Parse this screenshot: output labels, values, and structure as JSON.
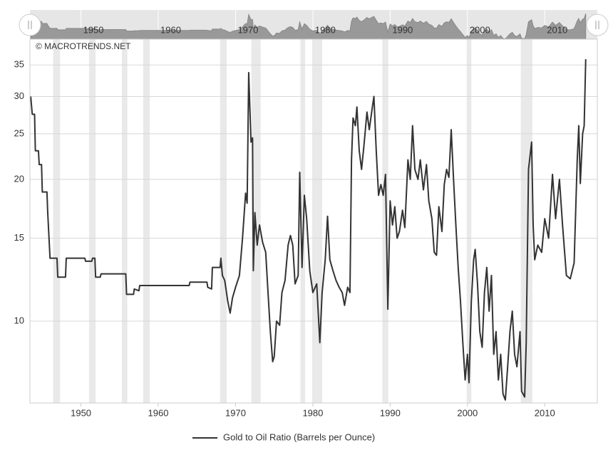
{
  "chart_data": {
    "type": "line",
    "credit": "© MACROTRENDS.NET",
    "log_scale": true,
    "grid": true,
    "xlim": [
      1943.4,
      2016.8
    ],
    "xticks": [
      1950,
      1960,
      1970,
      1980,
      1990,
      2000,
      2010
    ],
    "ylim": [
      6.7,
      39.7
    ],
    "yticks": [
      10,
      15,
      20,
      25,
      30,
      35
    ],
    "shaded_periods": [
      [
        1946.4,
        1947.3
      ],
      [
        1951.05,
        1951.9
      ],
      [
        1955.3,
        1956.0
      ],
      [
        1958.05,
        1958.9
      ],
      [
        1968.0,
        1968.85
      ],
      [
        1972.05,
        1973.25
      ],
      [
        1978.4,
        1979.0
      ],
      [
        1979.9,
        1981.2
      ],
      [
        1989.0,
        1989.75
      ],
      [
        1999.9,
        2000.5
      ],
      [
        2006.9,
        2008.4
      ]
    ],
    "series": [
      {
        "name": "Gold to Oil Ratio (Barrels per Ounce)",
        "color": "#333333",
        "x": [
          1943.5,
          1943.7,
          1944.0,
          1944.1,
          1944.5,
          1944.6,
          1944.9,
          1945.0,
          1945.6,
          1945.7,
          1946.0,
          1946.9,
          1947.0,
          1948.0,
          1948.1,
          1950.5,
          1950.6,
          1951.4,
          1951.5,
          1951.8,
          1951.9,
          1952.5,
          1952.6,
          1955.8,
          1955.9,
          1956.8,
          1956.9,
          1957.5,
          1957.6,
          1964.0,
          1964.1,
          1966.3,
          1966.4,
          1966.9,
          1967.0,
          1968.0,
          1968.1,
          1968.3,
          1968.6,
          1969.0,
          1969.3,
          1969.6,
          1970.0,
          1970.5,
          1970.9,
          1971.3,
          1971.5,
          1971.7,
          1972.0,
          1972.2,
          1972.3,
          1972.5,
          1972.8,
          1973.1,
          1973.5,
          1973.9,
          1974.2,
          1974.5,
          1974.8,
          1975.0,
          1975.3,
          1975.7,
          1976.0,
          1976.4,
          1976.8,
          1977.1,
          1977.4,
          1977.7,
          1978.1,
          1978.3,
          1978.6,
          1978.9,
          1979.2,
          1979.6,
          1980.0,
          1980.5,
          1980.9,
          1981.2,
          1981.6,
          1981.9,
          1982.2,
          1982.6,
          1983.0,
          1983.4,
          1983.8,
          1984.1,
          1984.5,
          1984.8,
          1985.0,
          1985.2,
          1985.5,
          1985.7,
          1986.0,
          1986.3,
          1986.6,
          1987.0,
          1987.3,
          1987.7,
          1987.9,
          1988.2,
          1988.5,
          1988.8,
          1989.1,
          1989.4,
          1989.7,
          1990.0,
          1990.3,
          1990.6,
          1990.9,
          1991.2,
          1991.6,
          1991.9,
          1992.3,
          1992.6,
          1992.9,
          1993.2,
          1993.6,
          1993.9,
          1994.3,
          1994.7,
          1995.0,
          1995.4,
          1995.7,
          1996.0,
          1996.3,
          1996.7,
          1997.0,
          1997.3,
          1997.6,
          1997.9,
          1998.2,
          1998.5,
          1998.8,
          1999.1,
          1999.4,
          1999.7,
          2000.0,
          2000.2,
          2000.5,
          2000.8,
          2001.0,
          2001.3,
          2001.6,
          2001.9,
          2002.2,
          2002.5,
          2002.8,
          2003.1,
          2003.4,
          2003.7,
          2004.0,
          2004.3,
          2004.6,
          2004.9,
          2005.2,
          2005.5,
          2005.8,
          2006.1,
          2006.4,
          2006.8,
          2007.0,
          2007.4,
          2007.6,
          2007.9,
          2008.3,
          2008.5,
          2008.7,
          2009.1,
          2009.6,
          2010.0,
          2010.5,
          2011.0,
          2011.4,
          2011.9,
          2012.3,
          2012.8,
          2013.3,
          2013.8,
          2014.2,
          2014.4,
          2014.6,
          2014.9,
          2015.1,
          2015.3
        ],
        "values": [
          30,
          27.5,
          27.5,
          23,
          23,
          21.5,
          21.5,
          18.8,
          18.8,
          17,
          13.6,
          13.6,
          12.4,
          12.4,
          13.6,
          13.6,
          13.4,
          13.4,
          13.6,
          13.6,
          12.4,
          12.4,
          12.6,
          12.6,
          11.4,
          11.4,
          11.7,
          11.6,
          11.9,
          11.9,
          12.1,
          12.1,
          11.8,
          11.7,
          13.0,
          13.0,
          13.6,
          12.5,
          12.2,
          11.0,
          10.4,
          11.2,
          11.8,
          12.5,
          15.0,
          18.7,
          17.8,
          33.7,
          24,
          24.5,
          12.8,
          17,
          14.5,
          16,
          14.7,
          14,
          11.5,
          9.5,
          8.2,
          8.4,
          10.0,
          9.8,
          11.5,
          12.2,
          14.5,
          15.2,
          14.5,
          12.0,
          12.5,
          20.7,
          13.0,
          18.5,
          16.5,
          12.8,
          11.5,
          12.0,
          9.0,
          11.5,
          13.5,
          16.7,
          13.5,
          12.8,
          12.2,
          11.8,
          11.5,
          10.8,
          11.8,
          11.5,
          22,
          27,
          26,
          28.5,
          23,
          21,
          23.5,
          27.8,
          25.5,
          28.5,
          30,
          23,
          18.5,
          19.5,
          18.5,
          20.5,
          10.6,
          18,
          16,
          17.5,
          15,
          15.5,
          17.2,
          15.8,
          22,
          20,
          26,
          21,
          20,
          22,
          19,
          21.5,
          18,
          16.5,
          14,
          13.8,
          17.5,
          15.5,
          19.5,
          21,
          20.2,
          25.5,
          20,
          16,
          13,
          11,
          9,
          7.5,
          8.5,
          7.4,
          11,
          13.5,
          14.2,
          12,
          9.5,
          8.8,
          11.5,
          13,
          10.5,
          12.5,
          8.5,
          9.5,
          7.5,
          8.5,
          7,
          6.8,
          8.0,
          9.5,
          10.5,
          8.5,
          8.0,
          9.5,
          7.1,
          6.9,
          9.0,
          21,
          24,
          16,
          13.5,
          14.5,
          14,
          16.5,
          15,
          20.5,
          16.5,
          20,
          16,
          12.5,
          12.3,
          13.3,
          22,
          26,
          19.6,
          25,
          26,
          36
        ]
      }
    ]
  }
}
